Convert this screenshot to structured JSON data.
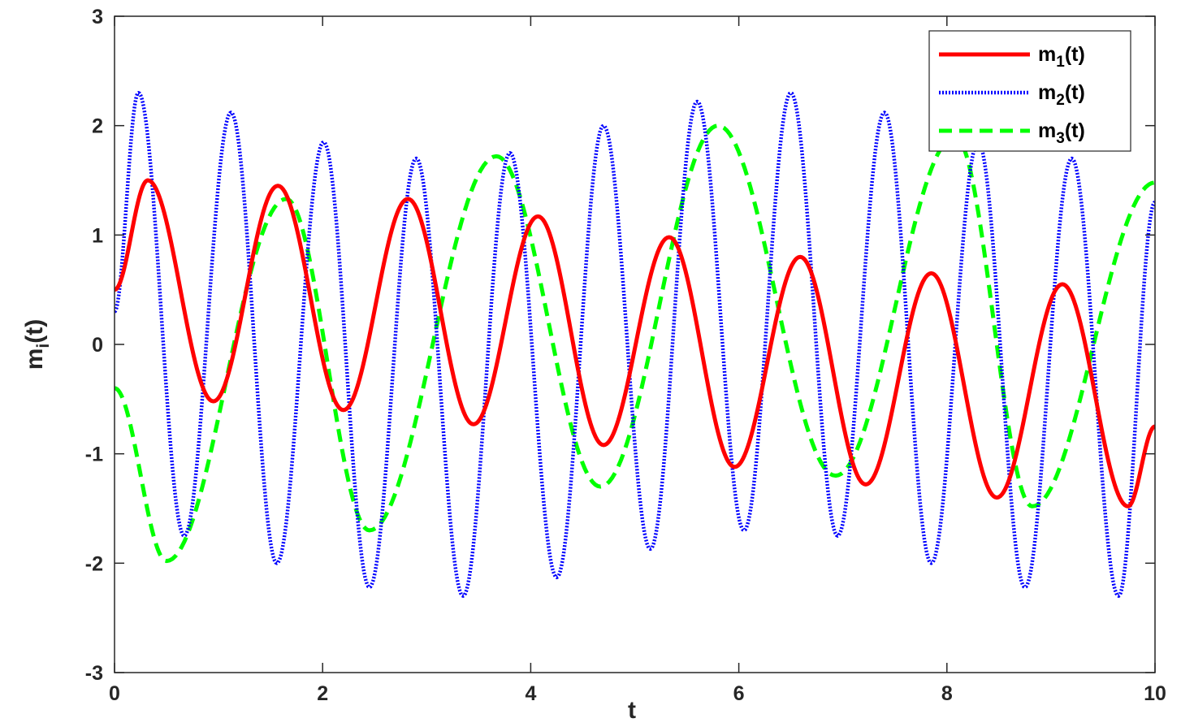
{
  "chart_data": {
    "type": "line",
    "xlabel": "t",
    "ylabel": "m",
    "ylabel_sub": "i",
    "ylabel_suffix": "(t)",
    "xlim": [
      0,
      10
    ],
    "ylim": [
      -3,
      3
    ],
    "xticks": [
      0,
      2,
      4,
      6,
      8,
      10
    ],
    "yticks": [
      -3,
      -2,
      -1,
      0,
      1,
      2,
      3
    ],
    "xtick_labels": [
      "0",
      "2",
      "4",
      "6",
      "8",
      "10"
    ],
    "ytick_labels": [
      "-3",
      "-2",
      "-1",
      "0",
      "1",
      "2",
      "3"
    ],
    "grid": false,
    "legend_position": "top-right",
    "series": [
      {
        "name": "m1(t)",
        "label_base": "m",
        "label_sub": "1",
        "label_suffix": "(t)",
        "color": "#ff0000",
        "style": "solid",
        "x": [
          0,
          0.32,
          0.95,
          1.57,
          2.2,
          2.82,
          3.45,
          4.07,
          4.7,
          5.33,
          5.96,
          6.59,
          7.22,
          7.85,
          8.48,
          9.11,
          9.74,
          10
        ],
        "y": [
          0.5,
          1.5,
          -0.52,
          1.45,
          -0.6,
          1.33,
          -0.73,
          1.17,
          -0.92,
          0.98,
          -1.12,
          0.8,
          -1.28,
          0.65,
          -1.4,
          0.55,
          -1.48,
          -0.75
        ]
      },
      {
        "name": "m2(t)",
        "label_base": "m",
        "label_sub": "2",
        "label_suffix": "(t)",
        "color": "#0000ff",
        "style": "dotted",
        "x": [
          0,
          0.23,
          0.67,
          1.12,
          1.56,
          2.01,
          2.45,
          2.9,
          3.35,
          3.8,
          4.25,
          4.7,
          5.15,
          5.6,
          6.05,
          6.5,
          6.95,
          7.4,
          7.85,
          8.3,
          8.75,
          9.2,
          9.65,
          10
        ],
        "y": [
          0.3,
          2.3,
          -1.75,
          2.12,
          -2.0,
          1.85,
          -2.22,
          1.7,
          -2.3,
          1.75,
          -2.13,
          2.0,
          -1.87,
          2.22,
          -1.7,
          2.3,
          -1.75,
          2.12,
          -2.0,
          1.85,
          -2.22,
          1.7,
          -2.3,
          1.3
        ]
      },
      {
        "name": "m3(t)",
        "label_base": "m",
        "label_sub": "3",
        "label_suffix": "(t)",
        "color": "#00ff00",
        "style": "dashed",
        "x": [
          0,
          0.5,
          1.65,
          2.45,
          3.67,
          4.67,
          5.8,
          6.93,
          8.08,
          8.82,
          10
        ],
        "y": [
          -0.4,
          -1.98,
          1.33,
          -1.7,
          1.72,
          -1.3,
          2.0,
          -1.2,
          1.9,
          -1.48,
          1.48
        ]
      }
    ]
  }
}
